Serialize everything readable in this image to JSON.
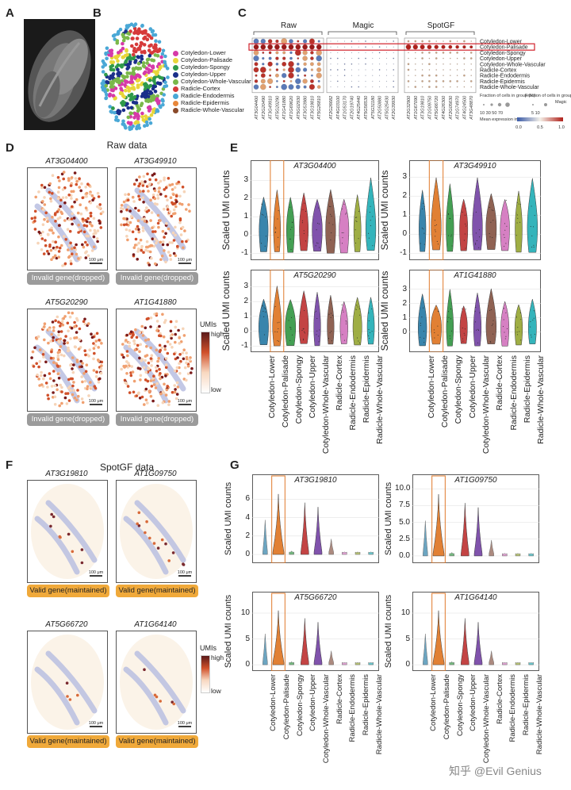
{
  "panels": {
    "A": "A",
    "B": "B",
    "C": "C",
    "D": "D",
    "E": "E",
    "F": "F",
    "G": "G"
  },
  "legend_b": [
    {
      "label": "Cotyledon-Lower",
      "color": "#d63aa8"
    },
    {
      "label": "Cotyledon-Palisade",
      "color": "#e8d63a"
    },
    {
      "label": "Cotyledon-Spongy",
      "color": "#2f9a4a"
    },
    {
      "label": "Cotyledon-Upper",
      "color": "#1a2f8a"
    },
    {
      "label": "Cotyledon-Whole-Vascular",
      "color": "#7ab84a"
    },
    {
      "label": "Radicle-Cortex",
      "color": "#d63a3a"
    },
    {
      "label": "Radicle-Endodermis",
      "color": "#4aa8d6"
    },
    {
      "label": "Radicle-Epidermis",
      "color": "#e8873a"
    },
    {
      "label": "Radicle-Whole-Vascular",
      "color": "#8a4a2a"
    }
  ],
  "panel_c": {
    "groups": [
      "Raw",
      "Magic",
      "SpotGF"
    ],
    "raw_genes": [
      "AT3G04400",
      "AT2G20490",
      "AT3G49910",
      "AT5G20290",
      "AT1G41880",
      "AT1G69620",
      "AT5G02930",
      "AT3G53980",
      "AT3G19810",
      "AT5G26810"
    ],
    "magic_genes": [
      "AT2G26682",
      "AT4G03100",
      "AT1G53170",
      "AT2G19740",
      "AT4G25440",
      "AT5G56530",
      "AT5G31180",
      "AT2G50880",
      "AT5G25430",
      "AT2G39930"
    ],
    "spotgf_genes": [
      "AT2G32900",
      "AT1G67090",
      "AT3G19810",
      "AT1G09750",
      "AT5G66720",
      "AT4G26300",
      "AT2G05630",
      "AT1G74970",
      "AT4G24500",
      "AT3G48870"
    ],
    "rows": [
      "Cotyledon-Lower",
      "Cotyledon-Palisade",
      "Cotyledon-Spongy",
      "Cotyledon-Upper",
      "Cotyledon-Whole-Vascular",
      "Radicle-Cortex",
      "Radicle-Endodermis",
      "Radicle-Epidermis",
      "Radicle-Whole-Vascular"
    ],
    "frac_title1": "Fraction of cells in group (%)",
    "frac_title2": "Fraction of cells in group (%)",
    "frac_vals": "10 30 50 70",
    "frac_magic": "5   10",
    "magic_tag": "Magic",
    "mean_title": "Mean expression in group",
    "mean_ticks": [
      "0.0",
      "0.5",
      "1.0"
    ]
  },
  "panel_d": {
    "title": "Raw data",
    "genes": [
      "AT3G04400",
      "AT3G49910",
      "AT5G20290",
      "AT1G41880"
    ],
    "badge": "Invalid gene(dropped)",
    "scale": "100 μm",
    "cbar_title": "UMIs",
    "cbar_high": "high",
    "cbar_low": "low"
  },
  "panel_e": {
    "ylabel": "Scaled UMI counts",
    "plots": [
      {
        "gene": "AT3G04400",
        "ymin": -1.2,
        "ymax": 3.5,
        "ticks": [
          -1,
          0,
          1,
          2,
          3
        ]
      },
      {
        "gene": "AT3G49910",
        "ymin": -1.2,
        "ymax": 3.3,
        "ticks": [
          -1,
          0,
          1,
          2,
          3
        ]
      },
      {
        "gene": "AT5G20290",
        "ymin": -1.2,
        "ymax": 3.4,
        "ticks": [
          -1,
          0,
          1,
          2,
          3
        ]
      },
      {
        "gene": "AT1G41880",
        "ymin": -1.2,
        "ymax": 3.6,
        "ticks": [
          0,
          1,
          2,
          3
        ]
      }
    ],
    "categories": [
      "Cotyledon-Lower",
      "Cotyledon-Palisade",
      "Cotyledon-Spongy",
      "Cotyledon-Upper",
      "Cotyledon-Whole-Vascular",
      "Radicle-Cortex",
      "Radicle-Endodermis",
      "Radicle-Epidermis",
      "Radicle-Whole-Vascular"
    ],
    "colors": [
      "#2f7fa8",
      "#e07a2a",
      "#3a9a4a",
      "#c03a3a",
      "#7a4aa8",
      "#8a5a4a",
      "#d47ac0",
      "#9aaa3a",
      "#2ab0b8"
    ]
  },
  "panel_f": {
    "title": "SpotGF data",
    "genes": [
      "AT3G19810",
      "AT1G09750",
      "AT5G66720",
      "AT1G64140"
    ],
    "badge": "Valid gene(maintained)",
    "scale": "100 μm",
    "cbar_title": "UMIs",
    "cbar_high": "high",
    "cbar_low": "low"
  },
  "panel_g": {
    "ylabel": "Scaled UMI counts",
    "plots": [
      {
        "gene": "AT3G19810",
        "ymax": 7.5,
        "ticks": [
          0,
          2,
          4,
          6
        ]
      },
      {
        "gene": "AT1G09750",
        "ymax": 10.5,
        "ticks": [
          0,
          2.5,
          5,
          7.5,
          10
        ]
      },
      {
        "gene": "AT5G66720",
        "ymax": 12,
        "ticks": [
          0,
          5,
          10
        ]
      },
      {
        "gene": "AT1G64140",
        "ymax": 12,
        "ticks": [
          0,
          5,
          10
        ]
      }
    ],
    "tick_labels": {
      "p0": [
        "0",
        "2",
        "4",
        "6"
      ],
      "p1": [
        "0.0",
        "2.5",
        "5.0",
        "7.5",
        "10.0"
      ],
      "p2": [
        "0",
        "5",
        "10"
      ],
      "p3": [
        "0",
        "5",
        "10"
      ]
    },
    "categories": [
      "Cotyledon-Lower",
      "Cotyledon-Palisade",
      "Cotyledon-Spongy",
      "Cotyledon-Upper",
      "Cotyledon-Whole-Vascular",
      "Radicle-Cortex",
      "Radicle-Endodermis",
      "Radicle-Epidermis",
      "Radicle-Whole-Vascular"
    ],
    "colors": [
      "#2f7fa8",
      "#e07a2a",
      "#3a9a4a",
      "#c03a3a",
      "#7a4aa8",
      "#8a5a4a",
      "#d47ac0",
      "#9aaa3a",
      "#2ab0b8"
    ]
  },
  "watermark": "知乎 @Evil Genius"
}
